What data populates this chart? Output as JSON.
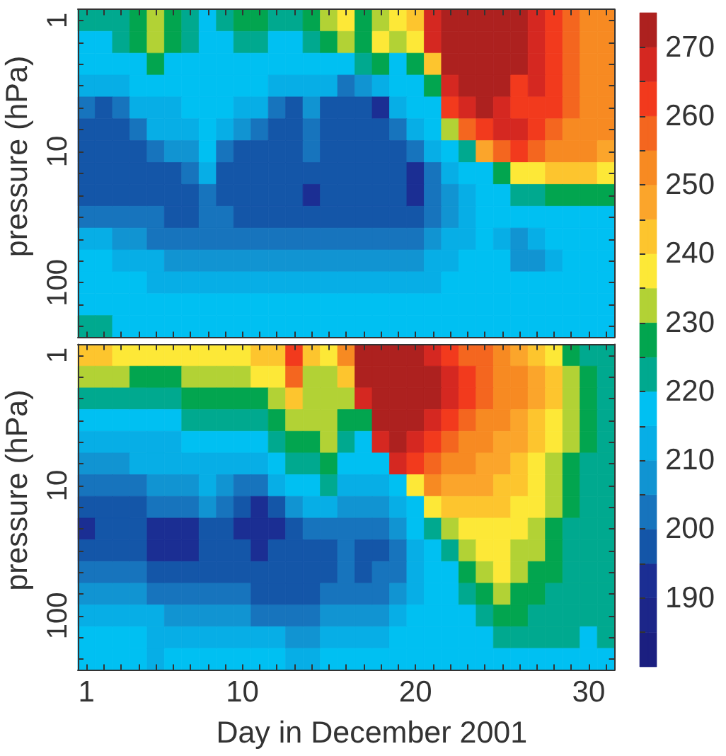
{
  "chart_data": [
    {
      "type": "heatmap",
      "ylabel": "pressure (hPa)",
      "tick_labels": "y",
      "categories": [
        "1",
        null,
        null,
        null,
        null,
        null,
        null,
        null,
        null,
        "10",
        null,
        null,
        null,
        null,
        null,
        null,
        null,
        null,
        null,
        "20",
        null,
        null,
        null,
        null,
        null,
        null,
        null,
        null,
        null,
        "30",
        null
      ],
      "y_categories": [
        "1",
        null,
        null,
        null,
        null,
        null,
        "10",
        null,
        null,
        null,
        null,
        null,
        "100",
        null,
        null
      ],
      "clim": [
        180,
        275
      ],
      "cticks": [
        {
          "value": 185,
          "label": null
        },
        190,
        {
          "value": 195,
          "label": null
        },
        {
          "value": 200,
          "label": null
        },
        {
          "value": 205,
          "label": null
        },
        210,
        {
          "value": 215,
          "label": null
        },
        {
          "value": 220,
          "label": null
        },
        {
          "value": 225,
          "label": null
        },
        230,
        {
          "value": 235,
          "label": null
        },
        {
          "value": 240,
          "label": null
        },
        {
          "value": 245,
          "label": null
        },
        250,
        {
          "value": 255,
          "label": null
        },
        {
          "value": 260,
          "label": null
        },
        {
          "value": 265,
          "label": null
        },
        270
      ],
      "cells": [
        [
          222,
          222,
          222,
          227,
          232,
          227,
          222,
          217,
          222,
          227,
          227,
          222,
          222,
          227,
          232,
          237,
          227,
          232,
          237,
          242,
          267,
          272,
          272,
          272,
          272,
          272,
          267,
          262,
          257,
          252,
          252
        ],
        [
          217,
          217,
          222,
          227,
          232,
          227,
          222,
          217,
          217,
          222,
          222,
          217,
          217,
          222,
          227,
          232,
          227,
          237,
          232,
          237,
          267,
          272,
          272,
          272,
          272,
          272,
          267,
          262,
          257,
          252,
          252
        ],
        [
          217,
          217,
          217,
          217,
          227,
          217,
          217,
          217,
          217,
          217,
          217,
          217,
          217,
          217,
          217,
          217,
          222,
          227,
          217,
          227,
          242,
          272,
          272,
          272,
          272,
          272,
          267,
          262,
          257,
          252,
          252
        ],
        [
          212,
          212,
          212,
          217,
          217,
          217,
          217,
          217,
          217,
          217,
          217,
          212,
          212,
          212,
          212,
          202,
          207,
          212,
          217,
          217,
          227,
          267,
          272,
          272,
          272,
          262,
          267,
          262,
          257,
          252,
          252
        ],
        [
          202,
          197,
          202,
          212,
          212,
          212,
          217,
          217,
          217,
          212,
          212,
          202,
          197,
          207,
          197,
          197,
          197,
          192,
          212,
          217,
          217,
          262,
          267,
          272,
          267,
          262,
          262,
          262,
          257,
          252,
          252
        ],
        [
          197,
          197,
          197,
          202,
          212,
          212,
          212,
          217,
          212,
          207,
          202,
          197,
          197,
          202,
          197,
          197,
          197,
          197,
          202,
          212,
          217,
          232,
          257,
          262,
          267,
          267,
          262,
          257,
          252,
          252,
          252
        ],
        [
          197,
          197,
          197,
          197,
          202,
          207,
          207,
          217,
          202,
          197,
          197,
          197,
          197,
          202,
          197,
          197,
          197,
          197,
          197,
          202,
          212,
          217,
          222,
          247,
          257,
          262,
          257,
          252,
          252,
          252,
          247
        ],
        [
          197,
          197,
          197,
          197,
          197,
          197,
          202,
          212,
          197,
          197,
          197,
          197,
          197,
          197,
          197,
          197,
          197,
          197,
          197,
          192,
          202,
          212,
          217,
          217,
          227,
          237,
          237,
          242,
          242,
          242,
          237
        ],
        [
          197,
          197,
          197,
          197,
          197,
          197,
          197,
          202,
          197,
          197,
          197,
          197,
          197,
          192,
          197,
          197,
          197,
          197,
          197,
          192,
          202,
          207,
          212,
          217,
          217,
          222,
          222,
          227,
          227,
          227,
          227
        ],
        [
          202,
          202,
          202,
          202,
          202,
          197,
          197,
          202,
          202,
          197,
          197,
          197,
          197,
          197,
          197,
          197,
          197,
          197,
          197,
          197,
          202,
          207,
          212,
          217,
          217,
          217,
          217,
          217,
          217,
          217,
          217
        ],
        [
          212,
          212,
          207,
          207,
          202,
          202,
          202,
          202,
          202,
          202,
          202,
          202,
          202,
          202,
          202,
          202,
          202,
          202,
          202,
          202,
          207,
          212,
          212,
          217,
          212,
          207,
          212,
          217,
          217,
          217,
          217
        ],
        [
          217,
          217,
          212,
          212,
          212,
          207,
          207,
          207,
          207,
          207,
          207,
          207,
          207,
          207,
          207,
          207,
          207,
          207,
          207,
          207,
          212,
          212,
          217,
          217,
          217,
          207,
          207,
          212,
          217,
          217,
          217
        ],
        [
          217,
          217,
          217,
          217,
          212,
          212,
          212,
          212,
          212,
          212,
          212,
          212,
          212,
          212,
          212,
          212,
          212,
          212,
          212,
          212,
          212,
          217,
          217,
          217,
          217,
          217,
          217,
          217,
          217,
          217,
          217
        ],
        [
          217,
          217,
          217,
          217,
          217,
          217,
          217,
          217,
          217,
          217,
          217,
          217,
          217,
          217,
          217,
          217,
          217,
          217,
          217,
          217,
          217,
          217,
          217,
          217,
          217,
          217,
          217,
          217,
          217,
          217,
          217
        ],
        [
          222,
          222,
          217,
          217,
          217,
          217,
          217,
          217,
          217,
          217,
          217,
          217,
          217,
          217,
          217,
          217,
          217,
          217,
          217,
          217,
          217,
          217,
          217,
          217,
          217,
          217,
          217,
          217,
          217,
          217,
          217
        ]
      ]
    },
    {
      "type": "heatmap",
      "xlabel": "Day in December 2001",
      "ylabel": "pressure (hPa)",
      "categories": [
        "1",
        null,
        null,
        null,
        null,
        null,
        null,
        null,
        null,
        "10",
        null,
        null,
        null,
        null,
        null,
        null,
        null,
        null,
        null,
        "20",
        null,
        null,
        null,
        null,
        null,
        null,
        null,
        null,
        null,
        "30",
        null
      ],
      "y_categories": [
        "1",
        null,
        null,
        null,
        null,
        null,
        "10",
        null,
        null,
        null,
        null,
        null,
        "100",
        null,
        null
      ],
      "clim": [
        180,
        275
      ],
      "cticks": [
        {
          "value": 185,
          "label": null
        },
        {
          "value": 190,
          "label": null
        },
        {
          "value": 195,
          "label": null
        },
        200,
        {
          "value": 205,
          "label": null
        },
        {
          "value": 210,
          "label": null
        },
        {
          "value": 215,
          "label": null
        },
        220,
        {
          "value": 225,
          "label": null
        },
        {
          "value": 230,
          "label": null
        },
        {
          "value": 235,
          "label": null
        },
        240,
        {
          "value": 245,
          "label": null
        },
        {
          "value": 250,
          "label": null
        },
        {
          "value": 255,
          "label": null
        },
        260,
        {
          "value": 265,
          "label": null
        },
        {
          "value": 270,
          "label": null
        }
      ],
      "cells": [
        [
          242,
          242,
          237,
          237,
          237,
          237,
          237,
          237,
          237,
          237,
          242,
          242,
          262,
          242,
          237,
          252,
          272,
          272,
          272,
          272,
          267,
          262,
          257,
          257,
          252,
          247,
          242,
          237,
          227,
          222,
          222
        ],
        [
          232,
          232,
          232,
          227,
          227,
          227,
          232,
          232,
          232,
          232,
          237,
          237,
          257,
          232,
          232,
          242,
          272,
          272,
          272,
          272,
          272,
          267,
          262,
          257,
          252,
          252,
          247,
          242,
          232,
          227,
          222
        ],
        [
          222,
          222,
          222,
          222,
          222,
          222,
          227,
          227,
          227,
          227,
          227,
          232,
          242,
          232,
          232,
          232,
          267,
          272,
          272,
          272,
          272,
          267,
          262,
          257,
          252,
          252,
          247,
          242,
          232,
          227,
          222
        ],
        [
          217,
          217,
          217,
          217,
          217,
          217,
          222,
          222,
          222,
          222,
          222,
          227,
          232,
          232,
          232,
          227,
          227,
          272,
          272,
          272,
          267,
          262,
          257,
          252,
          252,
          247,
          242,
          237,
          232,
          227,
          222
        ],
        [
          212,
          212,
          212,
          212,
          212,
          212,
          217,
          217,
          217,
          217,
          217,
          222,
          227,
          227,
          232,
          222,
          217,
          267,
          272,
          267,
          262,
          257,
          252,
          252,
          247,
          247,
          242,
          237,
          232,
          227,
          222
        ],
        [
          207,
          207,
          207,
          212,
          212,
          212,
          212,
          212,
          212,
          212,
          212,
          217,
          222,
          222,
          227,
          217,
          217,
          217,
          267,
          262,
          257,
          252,
          252,
          247,
          247,
          242,
          237,
          232,
          227,
          222,
          222
        ],
        [
          202,
          202,
          202,
          202,
          207,
          207,
          207,
          212,
          207,
          202,
          202,
          212,
          217,
          217,
          222,
          212,
          212,
          212,
          217,
          237,
          252,
          247,
          247,
          247,
          242,
          242,
          237,
          232,
          227,
          222,
          222
        ],
        [
          197,
          197,
          197,
          197,
          202,
          202,
          202,
          207,
          202,
          197,
          192,
          197,
          207,
          212,
          212,
          207,
          207,
          207,
          212,
          217,
          237,
          242,
          242,
          242,
          242,
          237,
          237,
          232,
          227,
          222,
          222
        ],
        [
          192,
          197,
          197,
          197,
          192,
          192,
          192,
          197,
          197,
          192,
          192,
          192,
          197,
          202,
          202,
          202,
          202,
          202,
          207,
          217,
          222,
          232,
          237,
          237,
          237,
          237,
          232,
          227,
          222,
          222,
          222
        ],
        [
          197,
          197,
          197,
          197,
          192,
          192,
          192,
          197,
          197,
          197,
          192,
          197,
          197,
          197,
          197,
          202,
          197,
          197,
          202,
          212,
          217,
          222,
          232,
          237,
          237,
          232,
          232,
          227,
          222,
          222,
          222
        ],
        [
          202,
          202,
          202,
          202,
          197,
          197,
          197,
          197,
          197,
          197,
          197,
          197,
          197,
          197,
          197,
          202,
          197,
          202,
          202,
          212,
          217,
          217,
          227,
          232,
          237,
          232,
          227,
          227,
          222,
          222,
          222
        ],
        [
          207,
          207,
          207,
          207,
          202,
          202,
          202,
          202,
          202,
          202,
          197,
          197,
          197,
          197,
          202,
          202,
          202,
          202,
          207,
          212,
          217,
          217,
          222,
          227,
          232,
          227,
          227,
          222,
          222,
          222,
          222
        ],
        [
          212,
          212,
          212,
          212,
          212,
          207,
          207,
          207,
          207,
          207,
          202,
          202,
          202,
          202,
          207,
          207,
          207,
          207,
          212,
          217,
          217,
          217,
          217,
          222,
          227,
          227,
          222,
          222,
          222,
          222,
          222
        ],
        [
          217,
          217,
          217,
          217,
          212,
          212,
          212,
          212,
          212,
          212,
          212,
          212,
          207,
          207,
          212,
          212,
          212,
          212,
          217,
          217,
          217,
          217,
          217,
          217,
          222,
          222,
          222,
          222,
          222,
          217,
          222
        ],
        [
          217,
          217,
          217,
          217,
          212,
          217,
          217,
          217,
          217,
          217,
          217,
          217,
          212,
          212,
          217,
          217,
          217,
          217,
          217,
          217,
          217,
          217,
          217,
          217,
          217,
          217,
          217,
          217,
          217,
          217,
          217
        ]
      ]
    }
  ]
}
